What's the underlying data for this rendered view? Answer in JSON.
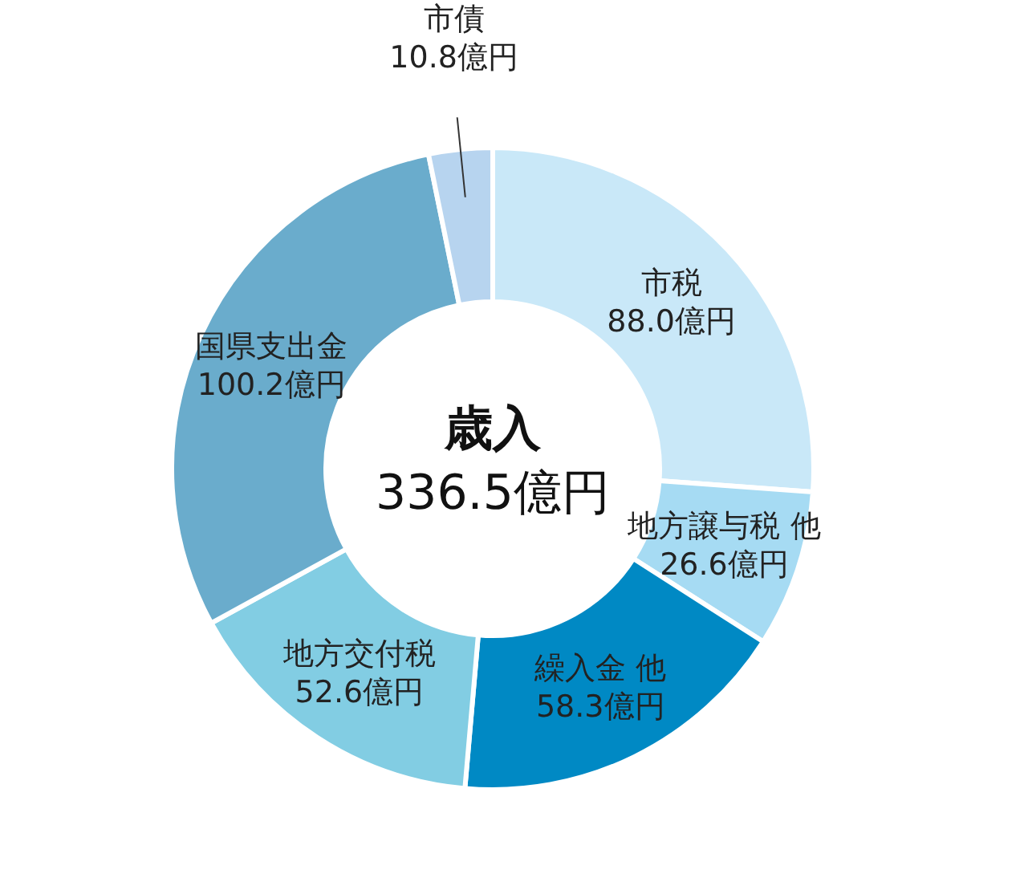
{
  "chart_data": {
    "type": "donut",
    "title": "歳入",
    "subtitle": "336.5億円",
    "categories": [
      "市税",
      "地方譲与税 他",
      "繰入金 他",
      "地方交付税",
      "国県支出金",
      "市債"
    ],
    "values": [
      88.0,
      26.6,
      58.3,
      52.6,
      100.2,
      10.8
    ],
    "value_labels": [
      "88.0億円",
      "26.6億円",
      "58.3億円",
      "52.6億円",
      "100.2億円",
      "10.8億円"
    ],
    "colors": [
      "#c9e8f8",
      "#a6dbf3",
      "#0089c4",
      "#82cde3",
      "#6aaccc",
      "#b7d4ef"
    ]
  }
}
